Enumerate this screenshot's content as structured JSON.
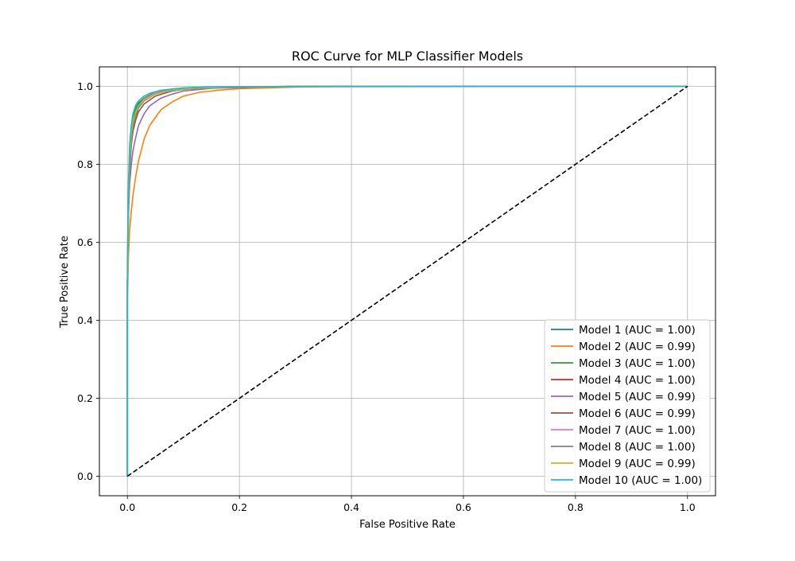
{
  "chart_data": {
    "type": "line",
    "title": "ROC Curve for MLP Classifier Models",
    "xlabel": "False Positive Rate",
    "ylabel": "True Positive Rate",
    "xlim": [
      -0.05,
      1.05
    ],
    "ylim": [
      -0.05,
      1.05
    ],
    "xticks": [
      "0.0",
      "0.2",
      "0.4",
      "0.6",
      "0.8",
      "1.0"
    ],
    "yticks": [
      "0.0",
      "0.2",
      "0.4",
      "0.6",
      "0.8",
      "1.0"
    ],
    "grid": true,
    "legend_position": "bottom-right",
    "series": [
      {
        "name": "Model 1 (AUC = 1.00)",
        "color": "#1f77b4",
        "x": [
          0,
          0,
          0.002,
          0.004,
          0.007,
          0.01,
          0.015,
          0.02,
          0.03,
          0.05,
          0.08,
          0.12,
          0.2,
          0.4,
          1.0
        ],
        "y": [
          0,
          0.5,
          0.72,
          0.82,
          0.88,
          0.915,
          0.94,
          0.955,
          0.97,
          0.985,
          0.993,
          0.997,
          0.999,
          1.0,
          1.0
        ]
      },
      {
        "name": "Model 2 (AUC = 0.99)",
        "color": "#ff7f0e",
        "x": [
          0,
          0,
          0.002,
          0.004,
          0.007,
          0.01,
          0.015,
          0.02,
          0.03,
          0.04,
          0.06,
          0.08,
          0.1,
          0.13,
          0.17,
          0.2,
          0.25,
          0.3,
          0.4,
          1.0
        ],
        "y": [
          0,
          0.45,
          0.57,
          0.63,
          0.68,
          0.72,
          0.77,
          0.81,
          0.865,
          0.9,
          0.94,
          0.96,
          0.975,
          0.985,
          0.991,
          0.994,
          0.996,
          0.998,
          1.0,
          1.0
        ]
      },
      {
        "name": "Model 3 (AUC = 1.00)",
        "color": "#2ca02c",
        "x": [
          0,
          0,
          0.002,
          0.004,
          0.007,
          0.01,
          0.015,
          0.02,
          0.03,
          0.04,
          0.06,
          0.1,
          0.15,
          0.3,
          1.0
        ],
        "y": [
          0,
          0.5,
          0.73,
          0.83,
          0.89,
          0.92,
          0.945,
          0.958,
          0.97,
          0.978,
          0.987,
          0.994,
          0.998,
          1.0,
          1.0
        ]
      },
      {
        "name": "Model 4 (AUC = 1.00)",
        "color": "#d62728",
        "x": [
          0,
          0,
          0.002,
          0.004,
          0.007,
          0.01,
          0.015,
          0.02,
          0.03,
          0.05,
          0.08,
          0.12,
          0.2,
          0.4,
          1.0
        ],
        "y": [
          0,
          0.5,
          0.71,
          0.81,
          0.87,
          0.905,
          0.932,
          0.948,
          0.965,
          0.982,
          0.992,
          0.996,
          0.999,
          1.0,
          1.0
        ]
      },
      {
        "name": "Model 5 (AUC = 0.99)",
        "color": "#9467bd",
        "x": [
          0,
          0,
          0.002,
          0.004,
          0.007,
          0.01,
          0.015,
          0.02,
          0.03,
          0.04,
          0.06,
          0.08,
          0.1,
          0.15,
          0.25,
          1.0
        ],
        "y": [
          0,
          0.5,
          0.67,
          0.75,
          0.8,
          0.835,
          0.87,
          0.9,
          0.93,
          0.95,
          0.97,
          0.98,
          0.988,
          0.995,
          0.999,
          1.0
        ]
      },
      {
        "name": "Model 6 (AUC = 0.99)",
        "color": "#8c564b",
        "x": [
          0,
          0,
          0.002,
          0.004,
          0.007,
          0.01,
          0.015,
          0.02,
          0.03,
          0.05,
          0.08,
          0.1,
          0.15,
          0.3,
          1.0
        ],
        "y": [
          0,
          0.5,
          0.69,
          0.78,
          0.85,
          0.885,
          0.915,
          0.935,
          0.955,
          0.975,
          0.988,
          0.992,
          0.997,
          1.0,
          1.0
        ]
      },
      {
        "name": "Model 7 (AUC = 1.00)",
        "color": "#e377c2",
        "x": [
          0,
          0,
          0.002,
          0.004,
          0.007,
          0.01,
          0.015,
          0.02,
          0.03,
          0.05,
          0.08,
          0.12,
          0.2,
          0.4,
          1.0
        ],
        "y": [
          0,
          0.5,
          0.7,
          0.8,
          0.86,
          0.9,
          0.93,
          0.95,
          0.968,
          0.983,
          0.992,
          0.996,
          0.999,
          1.0,
          1.0
        ]
      },
      {
        "name": "Model 8 (AUC = 1.00)",
        "color": "#7f7f7f",
        "x": [
          0,
          0,
          0.002,
          0.004,
          0.007,
          0.01,
          0.015,
          0.02,
          0.03,
          0.05,
          0.08,
          0.12,
          0.2,
          0.4,
          1.0
        ],
        "y": [
          0,
          0.5,
          0.7,
          0.8,
          0.86,
          0.895,
          0.925,
          0.945,
          0.963,
          0.98,
          0.991,
          0.996,
          0.999,
          1.0,
          1.0
        ]
      },
      {
        "name": "Model 9 (AUC = 0.99)",
        "color": "#bcbd22",
        "x": [
          0,
          0,
          0.002,
          0.004,
          0.007,
          0.01,
          0.015,
          0.02,
          0.03,
          0.05,
          0.08,
          0.12,
          0.2,
          0.4,
          1.0
        ],
        "y": [
          0,
          0.47,
          0.72,
          0.82,
          0.88,
          0.91,
          0.935,
          0.95,
          0.965,
          0.98,
          0.99,
          0.995,
          0.999,
          1.0,
          1.0
        ]
      },
      {
        "name": "Model 10 (AUC = 1.00)",
        "color": "#17becf",
        "x": [
          0,
          0,
          0.002,
          0.004,
          0.007,
          0.01,
          0.015,
          0.02,
          0.03,
          0.04,
          0.06,
          0.1,
          0.15,
          0.3,
          1.0
        ],
        "y": [
          0,
          0.55,
          0.76,
          0.85,
          0.9,
          0.93,
          0.952,
          0.963,
          0.975,
          0.982,
          0.99,
          0.996,
          0.999,
          1.0,
          1.0
        ]
      },
      {
        "name": "",
        "color": "#000000",
        "dashed": true,
        "x": [
          0,
          1
        ],
        "y": [
          0,
          1
        ]
      }
    ]
  }
}
